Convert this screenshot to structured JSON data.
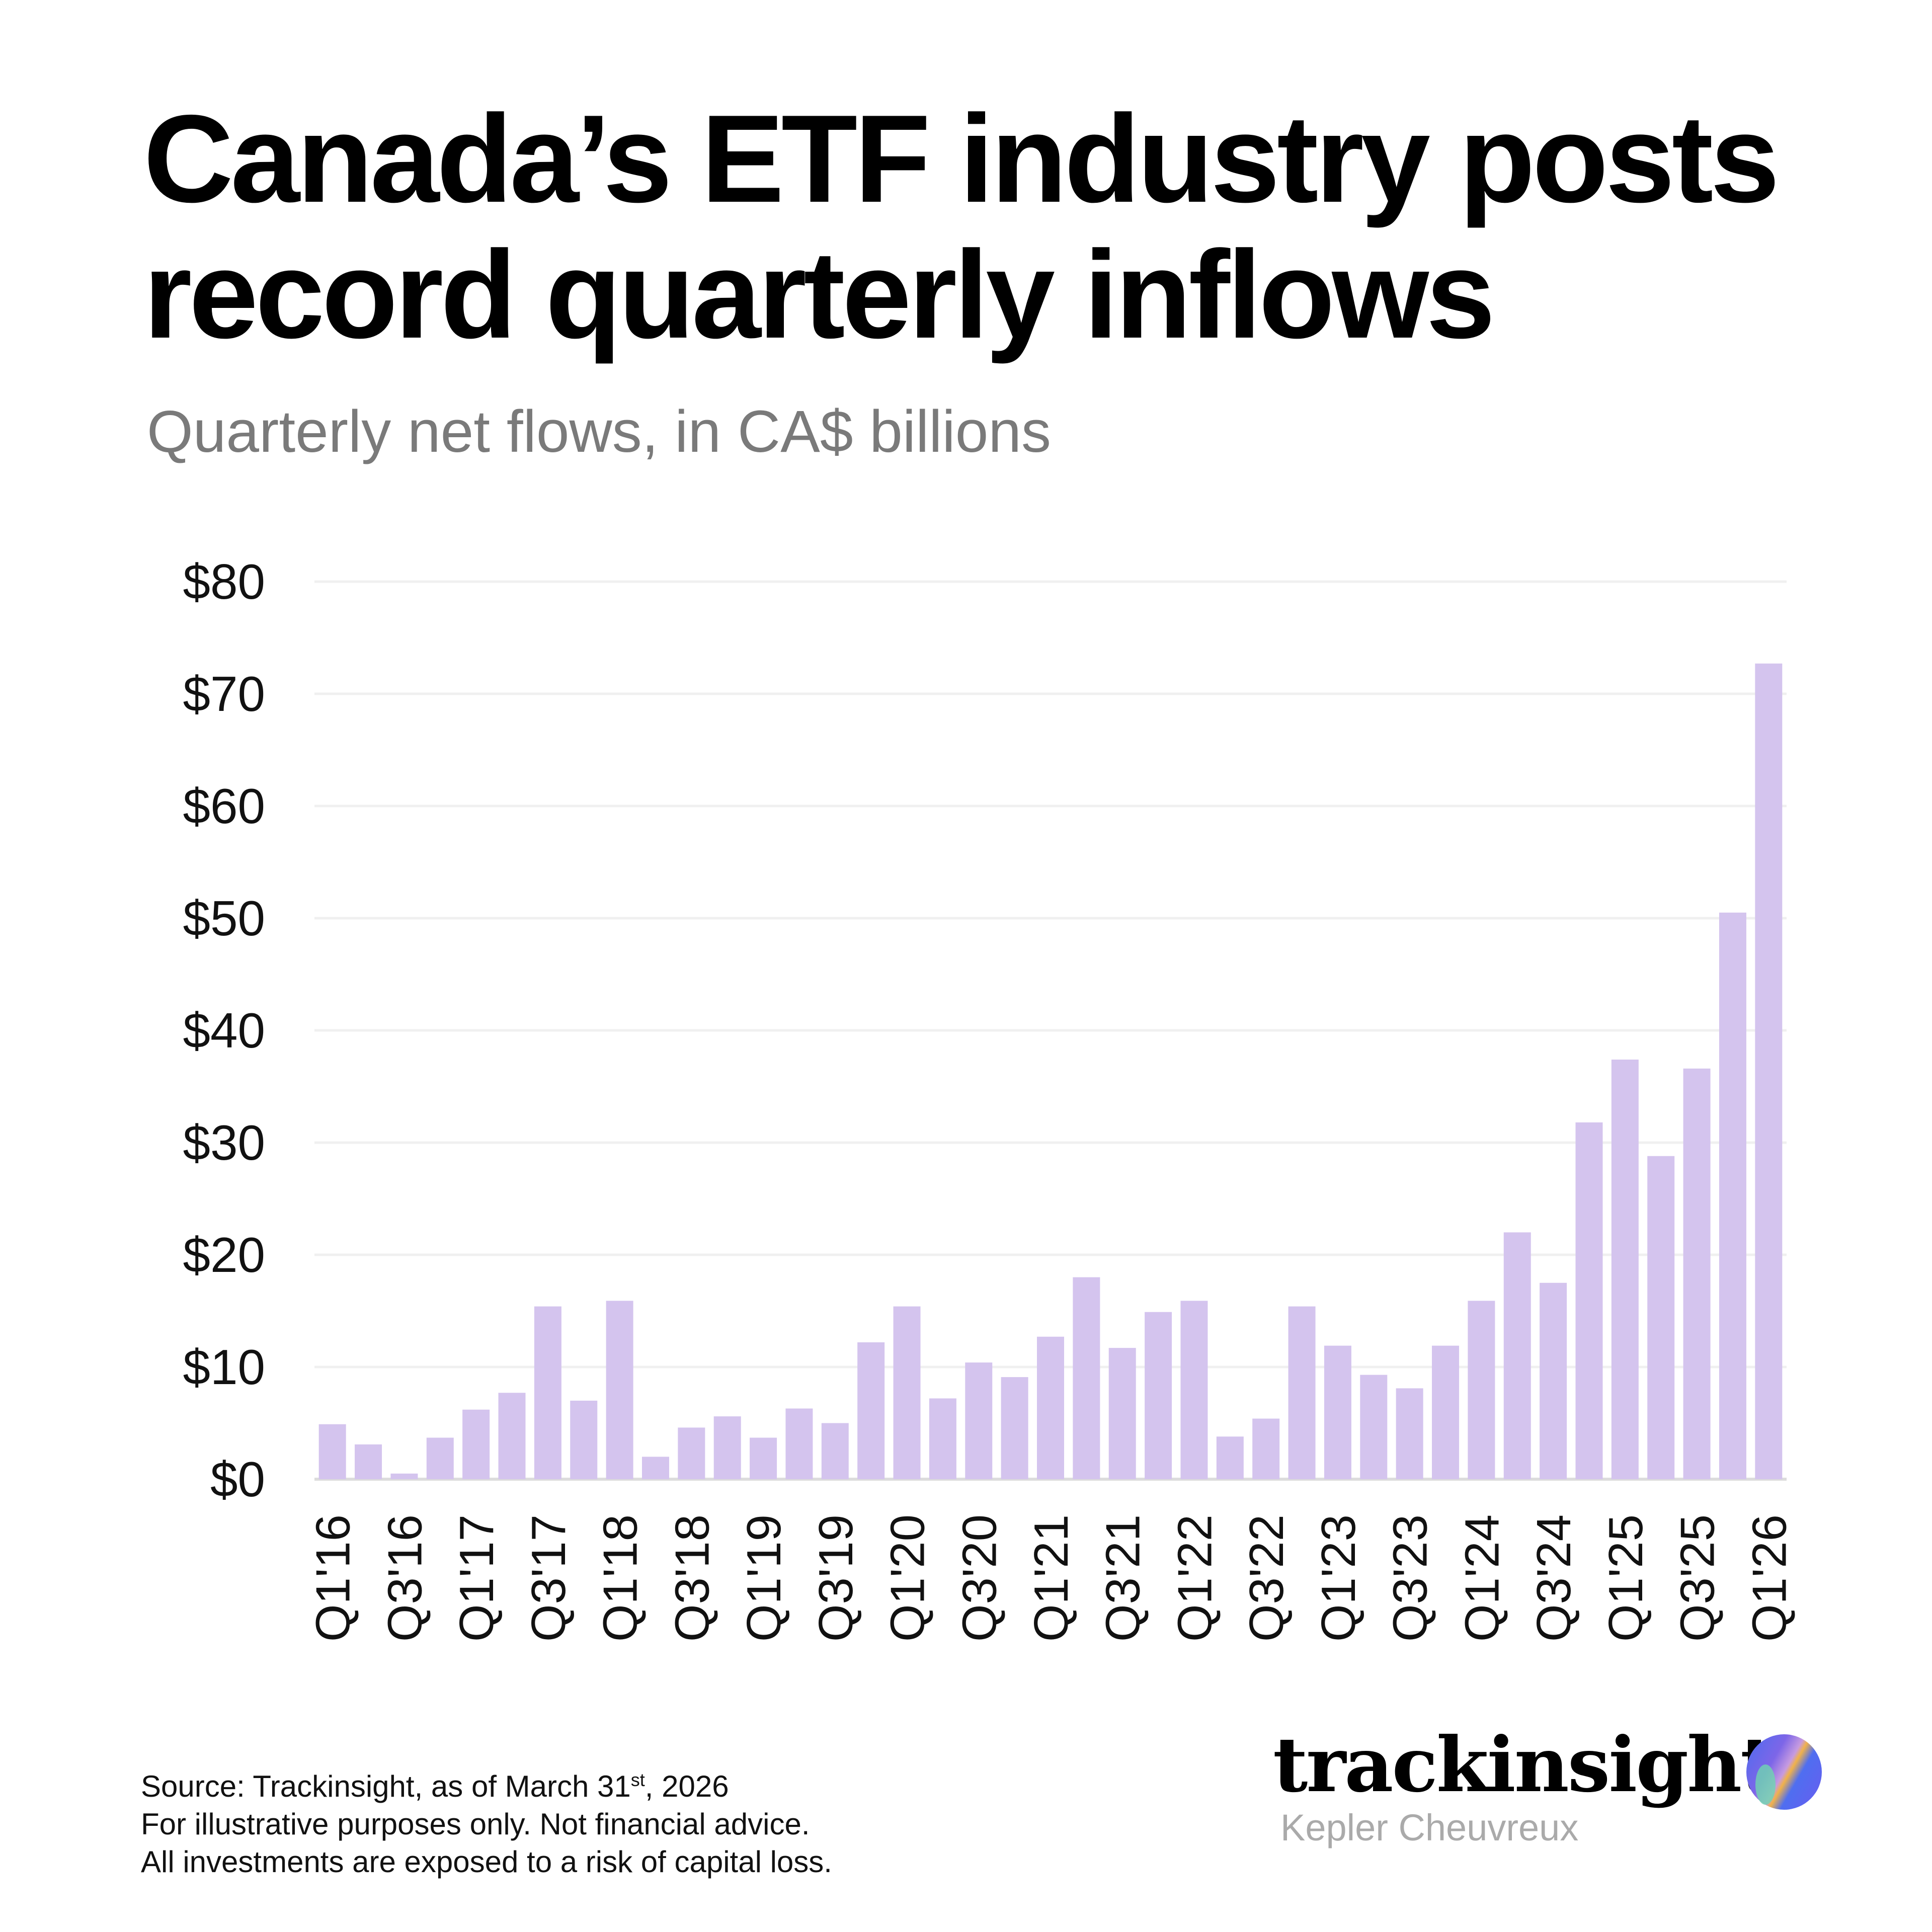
{
  "title_line1": "Canada’s ETF industry posts",
  "title_line2": "record quarterly inflows",
  "subtitle": "Quarterly net flows, in CA$ billions",
  "chart_data": {
    "type": "bar",
    "title": "Canada’s ETF industry posts record quarterly inflows",
    "subtitle": "Quarterly net flows, in CA$ billions",
    "xlabel": "",
    "ylabel": "",
    "ylim": [
      0,
      80
    ],
    "yticks": [
      0,
      10,
      20,
      30,
      40,
      50,
      60,
      70,
      80
    ],
    "ytick_labels": [
      "$0",
      "$10",
      "$20",
      "$30",
      "$40",
      "$50",
      "$60",
      "$70",
      "$80"
    ],
    "grid": true,
    "bar_color": "#d4c4ee",
    "categories": [
      "Q1'16",
      "Q2'16",
      "Q3'16",
      "Q4'16",
      "Q1'17",
      "Q2'17",
      "Q3'17",
      "Q4'17",
      "Q1'18",
      "Q2'18",
      "Q3'18",
      "Q4'18",
      "Q1'19",
      "Q2'19",
      "Q3'19",
      "Q4'19",
      "Q1'20",
      "Q2'20",
      "Q3'20",
      "Q4'20",
      "Q1'21",
      "Q2'21",
      "Q3'21",
      "Q4'21",
      "Q1'22",
      "Q2'22",
      "Q3'22",
      "Q4'22",
      "Q1'23",
      "Q2'23",
      "Q3'23",
      "Q4'23",
      "Q1'24",
      "Q2'24",
      "Q3'24",
      "Q4'24",
      "Q1'25",
      "Q2'25",
      "Q3'25",
      "Q4'25",
      "Q1'26"
    ],
    "xtick_labels": [
      "Q1'16",
      "Q3'16",
      "Q1'17",
      "Q3'17",
      "Q1'18",
      "Q3'18",
      "Q1'19",
      "Q3'19",
      "Q1'20",
      "Q3'20",
      "Q1'21",
      "Q3'21",
      "Q1'22",
      "Q3'22",
      "Q1'23",
      "Q3'23",
      "Q1'24",
      "Q3'24",
      "Q1'25",
      "Q3'25",
      "Q1'26"
    ],
    "values": [
      4.9,
      3.1,
      0.5,
      3.7,
      6.2,
      7.7,
      15.4,
      7.0,
      15.9,
      2.0,
      4.6,
      5.6,
      3.7,
      6.3,
      5.0,
      12.2,
      15.4,
      7.2,
      10.4,
      9.1,
      12.7,
      18.0,
      11.7,
      14.9,
      15.9,
      3.8,
      5.4,
      15.4,
      11.9,
      9.3,
      8.1,
      11.9,
      15.9,
      22.0,
      17.5,
      31.8,
      37.4,
      28.8,
      36.6,
      50.5,
      72.7
    ]
  },
  "footer": {
    "source_prefix": "Source: Trackinsight, as of March 31",
    "source_sup": "st",
    "source_suffix": ", 2026",
    "line2": "For illustrative purposes only. Not financial advice.",
    "line3": "All investments are exposed to a risk of capital loss."
  },
  "brand": {
    "name": "trackinsight",
    "sub": "Kepler Cheuvreux"
  }
}
